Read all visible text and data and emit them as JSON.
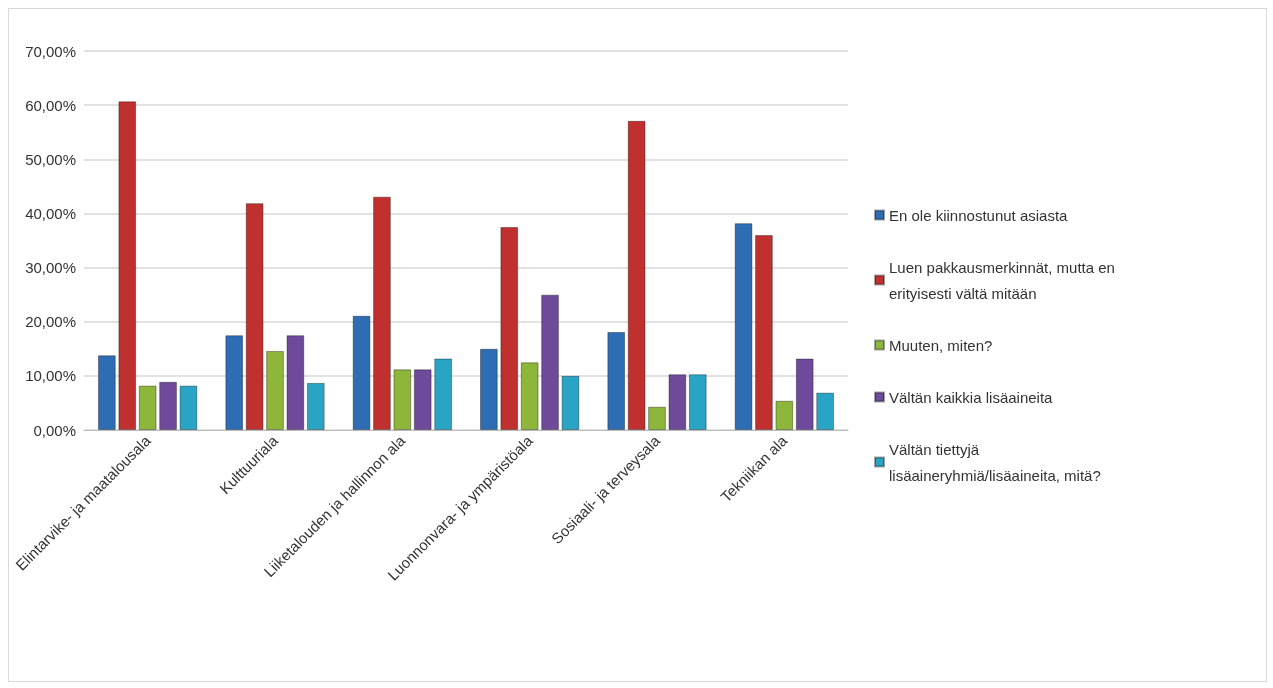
{
  "chart_data": {
    "type": "bar",
    "categories": [
      "Elintarvike- ja maatalousala",
      "Kulttuuriala",
      "Liiketalouden ja hallinnon ala",
      "Luonnonvara- ja ympäristöala",
      "Sosiaali- ja terveysala",
      "Tekniikan ala"
    ],
    "series": [
      {
        "name": "En ole kiinnostunut asiasta",
        "color": "#2e6db4",
        "values": [
          13.8,
          17.5,
          21.1,
          15.0,
          18.1,
          38.2
        ]
      },
      {
        "name": "Luen pakkausmerkinnät, mutta en erityisesti vältä mitään",
        "color": "#c0302e",
        "values": [
          60.7,
          41.9,
          43.1,
          37.5,
          57.1,
          36.0
        ]
      },
      {
        "name": "Muuten, miten?",
        "color": "#8db63a",
        "values": [
          8.2,
          14.6,
          11.2,
          12.5,
          4.3,
          5.4
        ]
      },
      {
        "name": "Vältän kaikkia lisäaineita",
        "color": "#6f4a9a",
        "values": [
          8.9,
          17.5,
          11.2,
          25.0,
          10.3,
          13.2
        ]
      },
      {
        "name": "Vältän tiettyjä lisäaineryhmiä/lisäaineita, mitä?",
        "color": "#2aa4c4",
        "values": [
          8.2,
          8.7,
          13.2,
          10.0,
          10.3,
          6.9
        ]
      }
    ],
    "ylim": [
      0,
      70
    ],
    "yticks": [
      {
        "value": 0,
        "label": "0,00%"
      },
      {
        "value": 10,
        "label": "10,00%"
      },
      {
        "value": 20,
        "label": "20,00%"
      },
      {
        "value": 30,
        "label": "30,00%"
      },
      {
        "value": 40,
        "label": "40,00%"
      },
      {
        "value": 50,
        "label": "50,00%"
      },
      {
        "value": 60,
        "label": "60,00%"
      },
      {
        "value": 70,
        "label": "70,00%"
      }
    ],
    "grid": "y",
    "legend": "right"
  }
}
